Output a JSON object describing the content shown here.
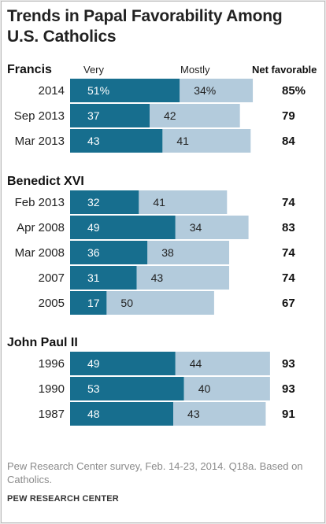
{
  "chart_data": {
    "type": "bar",
    "title": "Trends in Papal Favorability Among U.S. Catholics",
    "column_headers": {
      "very": "Very",
      "mostly": "Mostly",
      "net": "Net favorable"
    },
    "groups": [
      {
        "name": "Francis",
        "rows": [
          {
            "label": "2014",
            "very": 51,
            "mostly": 34,
            "net": 85,
            "very_text": "51%",
            "mostly_text": "34%",
            "net_text": "85%"
          },
          {
            "label": "Sep 2013",
            "very": 37,
            "mostly": 42,
            "net": 79,
            "very_text": "37",
            "mostly_text": "42",
            "net_text": "79"
          },
          {
            "label": "Mar 2013",
            "very": 43,
            "mostly": 41,
            "net": 84,
            "very_text": "43",
            "mostly_text": "41",
            "net_text": "84"
          }
        ]
      },
      {
        "name": "Benedict XVI",
        "rows": [
          {
            "label": "Feb 2013",
            "very": 32,
            "mostly": 41,
            "net": 74,
            "very_text": "32",
            "mostly_text": "41",
            "net_text": "74"
          },
          {
            "label": "Apr 2008",
            "very": 49,
            "mostly": 34,
            "net": 83,
            "very_text": "49",
            "mostly_text": "34",
            "net_text": "83"
          },
          {
            "label": "Mar 2008",
            "very": 36,
            "mostly": 38,
            "net": 74,
            "very_text": "36",
            "mostly_text": "38",
            "net_text": "74"
          },
          {
            "label": "2007",
            "very": 31,
            "mostly": 43,
            "net": 74,
            "very_text": "31",
            "mostly_text": "43",
            "net_text": "74"
          },
          {
            "label": "2005",
            "very": 17,
            "mostly": 50,
            "net": 67,
            "very_text": "17",
            "mostly_text": "50",
            "net_text": "67"
          }
        ]
      },
      {
        "name": "John Paul II",
        "rows": [
          {
            "label": "1996",
            "very": 49,
            "mostly": 44,
            "net": 93,
            "very_text": "49",
            "mostly_text": "44",
            "net_text": "93"
          },
          {
            "label": "1990",
            "very": 53,
            "mostly": 40,
            "net": 93,
            "very_text": "53",
            "mostly_text": "40",
            "net_text": "93"
          },
          {
            "label": "1987",
            "very": 48,
            "mostly": 43,
            "net": 91,
            "very_text": "48",
            "mostly_text": "43",
            "net_text": "91"
          }
        ]
      }
    ],
    "colors": {
      "very": "#176e8e",
      "mostly": "#b3cbdc"
    }
  },
  "footer": {
    "note": "Pew Research Center survey, Feb. 14-23, 2014. Q18a. Based on Catholics.",
    "source": "PEW RESEARCH CENTER"
  }
}
